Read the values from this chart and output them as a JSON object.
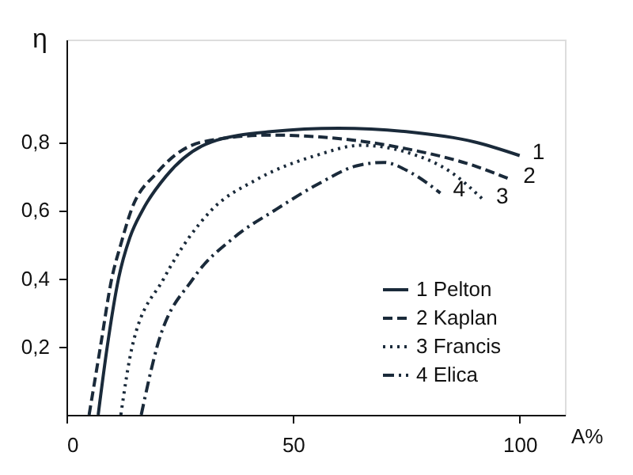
{
  "chart_data": {
    "type": "line",
    "xlabel": "A%",
    "ylabel": "η",
    "xlim": [
      0,
      110
    ],
    "ylim": [
      0,
      1.1
    ],
    "xticks": [
      0,
      50,
      100
    ],
    "yticks": [
      {
        "value": 0.2,
        "label": "0,2"
      },
      {
        "value": 0.4,
        "label": "0,4"
      },
      {
        "value": 0.6,
        "label": "0,6"
      },
      {
        "value": 0.8,
        "label": "0,8"
      }
    ],
    "grid": false,
    "legend": "right",
    "marker": "none",
    "series": [
      {
        "name": "1 Pelton",
        "color": "#1a2a3a",
        "line_style": "solid",
        "x": [
          7,
          9,
          11.5,
          14,
          16.8,
          22,
          32,
          45,
          60,
          75,
          90,
          100
        ],
        "values": [
          0,
          0.2,
          0.4,
          0.52,
          0.6,
          0.7,
          0.8,
          0.83,
          0.84,
          0.83,
          0.8,
          0.76
        ]
      },
      {
        "name": "2 Kaplan",
        "color": "#1a2a3a",
        "line_style": "dashed",
        "x": [
          5,
          7.5,
          10,
          12,
          14.3,
          20,
          30,
          45,
          60,
          75,
          90,
          98
        ],
        "values": [
          0,
          0.2,
          0.4,
          0.5,
          0.6,
          0.71,
          0.8,
          0.82,
          0.81,
          0.78,
          0.73,
          0.69
        ]
      },
      {
        "name": "3 Francis",
        "color": "#1a2a3a",
        "line_style": "dotted",
        "x": [
          12,
          14.5,
          21.5,
          32,
          42,
          55,
          65,
          75,
          85,
          92
        ],
        "values": [
          0,
          0.2,
          0.4,
          0.6,
          0.69,
          0.76,
          0.79,
          0.77,
          0.71,
          0.63
        ]
      },
      {
        "name": "4 Elica",
        "color": "#1a2a3a",
        "line_style": "dashdot",
        "x": [
          16.5,
          20,
          28,
          37,
          46,
          56,
          64,
          70,
          76,
          82.5
        ],
        "values": [
          0,
          0.2,
          0.4,
          0.52,
          0.6,
          0.68,
          0.73,
          0.74,
          0.71,
          0.65
        ]
      }
    ],
    "annotations": [
      {
        "text": "1",
        "x": 100,
        "y": 0.76
      },
      {
        "text": "2",
        "x": 98,
        "y": 0.69
      },
      {
        "text": "3",
        "x": 92,
        "y": 0.63
      },
      {
        "text": "4",
        "x": 82.5,
        "y": 0.65
      }
    ]
  }
}
